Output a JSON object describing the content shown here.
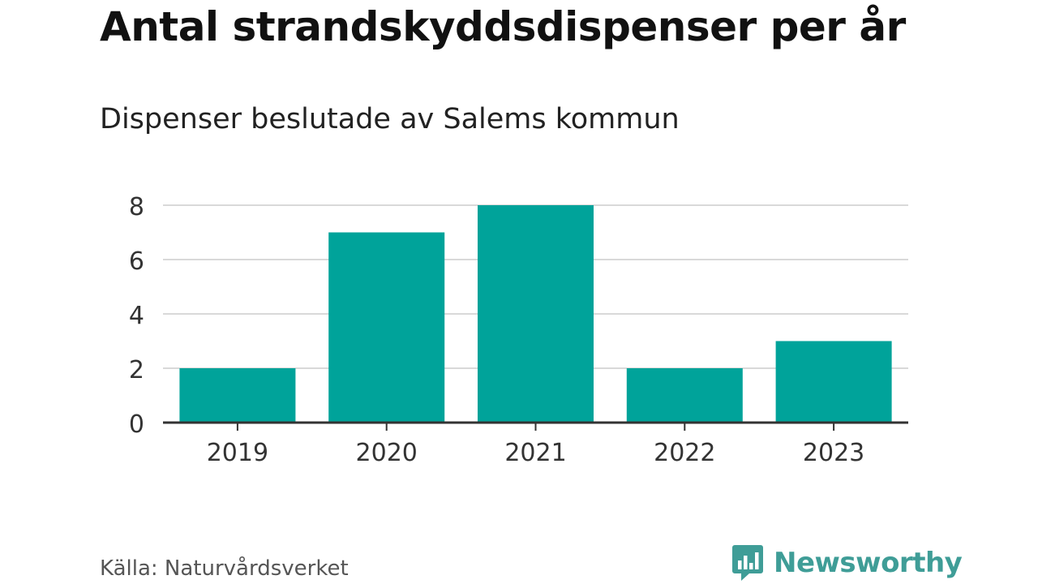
{
  "header": {
    "title": "Antal strandskyddsdispenser per år",
    "subtitle": "Dispenser beslutade av Salems kommun"
  },
  "footer": {
    "source": "Källa: Naturvårdsverket",
    "brand": "Newsworthy"
  },
  "colors": {
    "bar": "#00a39a",
    "grid": "#d9d9d9",
    "axis": "#333333",
    "text": "#333333",
    "brand": "#3f9d97"
  },
  "chart_data": {
    "type": "bar",
    "title": "Antal strandskyddsdispenser per år",
    "subtitle": "Dispenser beslutade av Salems kommun",
    "categories": [
      "2019",
      "2020",
      "2021",
      "2022",
      "2023"
    ],
    "values": [
      2,
      7,
      8,
      2,
      3
    ],
    "xlabel": "",
    "ylabel": "",
    "ylim": [
      0,
      8
    ],
    "yticks": [
      0,
      2,
      4,
      6,
      8
    ],
    "grid": true,
    "legend": "none"
  }
}
